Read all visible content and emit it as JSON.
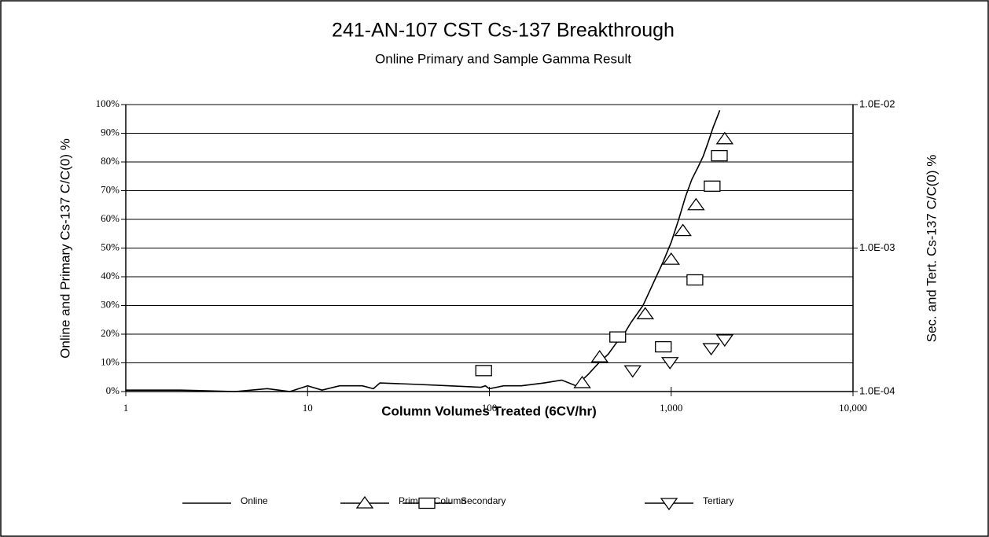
{
  "chart_data": {
    "type": "line",
    "title": "241-AN-107 CST Cs-137 Breakthrough",
    "subtitle": "Online Primary and Sample Gamma Result",
    "x_label": "Column Volumes Treated (6CV/hr)",
    "y_label": "Online and Primary Cs-137 C/C(0) %",
    "y2_label": "Sec. and Tert. Cs-137 C/C(0) %",
    "x_scale": "log",
    "y2_scale": "log",
    "xlim": [
      1,
      10000
    ],
    "xticks": [
      1,
      10,
      100,
      {
        "value": 1000,
        "label": "1,000"
      },
      {
        "value": 10000,
        "label": "10,000"
      }
    ],
    "ylim": [
      0,
      100
    ],
    "yticks": [
      {
        "value": 0,
        "label": "0%"
      },
      {
        "value": 10,
        "label": "10%"
      },
      {
        "value": 20,
        "label": "20%"
      },
      {
        "value": 30,
        "label": "30%"
      },
      {
        "value": 40,
        "label": "40%"
      },
      {
        "value": 50,
        "label": "50%"
      },
      {
        "value": 60,
        "label": "60%"
      },
      {
        "value": 70,
        "label": "70%"
      },
      {
        "value": 80,
        "label": "80%"
      },
      {
        "value": 90,
        "label": "90%"
      },
      {
        "value": 100,
        "label": "100%"
      }
    ],
    "y2lim": [
      0.0001,
      0.01
    ],
    "y2ticks": [
      {
        "value": 0.0001,
        "label": "1.0E-04"
      },
      {
        "value": 0.001,
        "label": "1.0E-03"
      },
      {
        "value": 0.01,
        "label": "1.0E-02"
      }
    ],
    "grid": true,
    "legend": "bottom",
    "series": [
      {
        "name": "Online",
        "color": "#000000",
        "x": [
          1,
          2,
          4,
          6,
          8,
          10,
          12,
          15,
          20,
          23,
          25,
          40,
          60,
          90,
          95,
          100,
          120,
          150,
          200,
          250,
          300,
          350,
          400,
          450,
          500,
          550,
          600,
          700,
          800,
          900,
          1000,
          1100,
          1200,
          1300,
          1400,
          1500,
          1600,
          1700,
          1800,
          1850
        ],
        "values": [
          0.5,
          0.5,
          0,
          1,
          0,
          2,
          0.5,
          2,
          2,
          1,
          3,
          2.5,
          2,
          1.5,
          2,
          1,
          2,
          2,
          3,
          4,
          2,
          6,
          10,
          13,
          17,
          20,
          24,
          30,
          38,
          45,
          52,
          60,
          68,
          74,
          78,
          82,
          87,
          92,
          96,
          98
        ]
      },
      {
        "name": "Primary Column",
        "color": "#000000",
        "marker": "triangle",
        "x": [
          324,
          404,
          720,
          1000,
          1160,
          1370,
          1970
        ],
        "values": [
          3,
          12,
          27,
          46,
          56,
          65,
          88
        ]
      },
      {
        "name": "Secondary",
        "color": "#000000",
        "marker": "square",
        "axis": "y2",
        "x": [
          93,
          508,
          905,
          1350,
          1680,
          1840
        ],
        "values": [
          0.00014,
          0.00024,
          0.000205,
          0.0006,
          0.0027,
          0.0044
        ]
      },
      {
        "name": "Tertiary",
        "color": "#000000",
        "marker": "triangle-down",
        "axis": "y2",
        "x": [
          614,
          985,
          1660,
          1970
        ],
        "values": [
          0.00014,
          0.00016,
          0.0002,
          0.00023
        ]
      }
    ]
  }
}
